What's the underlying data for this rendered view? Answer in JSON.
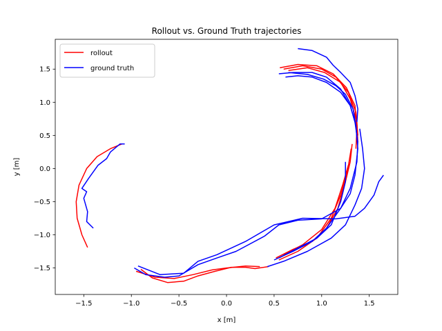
{
  "chart_data": {
    "type": "line",
    "title": "Rollout vs. Ground Truth trajectories",
    "xlabel": "x [m]",
    "ylabel": "y [m]",
    "xlim": [
      -1.8,
      1.8
    ],
    "ylim": [
      -1.9,
      1.95
    ],
    "xticks": [
      -1.5,
      -1.0,
      -0.5,
      0.0,
      0.5,
      1.0,
      1.5
    ],
    "xtick_labels": [
      "−1.5",
      "−1.0",
      "−0.5",
      "0.0",
      "0.5",
      "1.0",
      "1.5"
    ],
    "yticks": [
      -1.5,
      -1.0,
      -0.5,
      0.0,
      0.5,
      1.0,
      1.5
    ],
    "ytick_labels": [
      "−1.5",
      "−1.0",
      "−0.5",
      "0.0",
      "0.5",
      "1.0",
      "1.5"
    ],
    "grid": false,
    "legend": {
      "placement": "top-left",
      "entries": [
        {
          "label": "rollout",
          "color": "#ff0000"
        },
        {
          "label": "ground truth",
          "color": "#0000ff"
        }
      ]
    },
    "series": [
      {
        "role": "rollout",
        "color": "#ff0000",
        "points": [
          [
            -1.46,
            -1.19
          ],
          [
            -1.52,
            -1.0
          ],
          [
            -1.57,
            -0.75
          ],
          [
            -1.58,
            -0.5
          ],
          [
            -1.55,
            -0.25
          ],
          [
            -1.47,
            0.0
          ],
          [
            -1.36,
            0.18
          ],
          [
            -1.22,
            0.3
          ],
          [
            -1.1,
            0.37
          ]
        ]
      },
      {
        "role": "rollout",
        "color": "#ff0000",
        "points": [
          [
            -0.9,
            -1.52
          ],
          [
            -0.78,
            -1.65
          ],
          [
            -0.62,
            -1.72
          ],
          [
            -0.45,
            -1.7
          ],
          [
            -0.3,
            -1.62
          ],
          [
            -0.12,
            -1.55
          ],
          [
            0.05,
            -1.49
          ],
          [
            0.2,
            -1.49
          ],
          [
            0.3,
            -1.51
          ],
          [
            0.44,
            -1.48
          ]
        ]
      },
      {
        "role": "rollout",
        "color": "#ff0000",
        "points": [
          [
            -0.95,
            -1.55
          ],
          [
            -0.75,
            -1.64
          ],
          [
            -0.55,
            -1.66
          ],
          [
            -0.35,
            -1.6
          ],
          [
            -0.15,
            -1.53
          ],
          [
            0.0,
            -1.5
          ],
          [
            0.2,
            -1.47
          ],
          [
            0.35,
            -1.48
          ]
        ]
      },
      {
        "role": "rollout",
        "color": "#ff0000",
        "points": [
          [
            0.52,
            -1.35
          ],
          [
            0.7,
            -1.22
          ],
          [
            0.9,
            -1.1
          ],
          [
            1.05,
            -0.9
          ],
          [
            1.17,
            -0.6
          ],
          [
            1.25,
            -0.2
          ],
          [
            1.3,
            0.1
          ],
          [
            1.32,
            0.37
          ]
        ]
      },
      {
        "role": "rollout",
        "color": "#ff0000",
        "points": [
          [
            0.55,
            -1.38
          ],
          [
            0.75,
            -1.25
          ],
          [
            0.95,
            -1.05
          ],
          [
            1.1,
            -0.75
          ],
          [
            1.2,
            -0.4
          ],
          [
            1.27,
            -0.05
          ],
          [
            1.31,
            0.3
          ]
        ]
      },
      {
        "role": "rollout",
        "color": "#ff0000",
        "points": [
          [
            0.6,
            -1.3
          ],
          [
            0.8,
            -1.15
          ],
          [
            1.0,
            -0.92
          ],
          [
            1.14,
            -0.6
          ],
          [
            1.22,
            -0.25
          ],
          [
            1.28,
            0.05
          ]
        ]
      },
      {
        "role": "rollout",
        "color": "#ff0000",
        "points": [
          [
            0.56,
            1.52
          ],
          [
            0.75,
            1.57
          ],
          [
            0.95,
            1.55
          ],
          [
            1.12,
            1.43
          ],
          [
            1.26,
            1.22
          ],
          [
            1.35,
            0.95
          ],
          [
            1.37,
            0.6
          ],
          [
            1.36,
            0.3
          ]
        ]
      },
      {
        "role": "rollout",
        "color": "#ff0000",
        "points": [
          [
            0.6,
            1.5
          ],
          [
            0.8,
            1.55
          ],
          [
            1.0,
            1.5
          ],
          [
            1.15,
            1.38
          ],
          [
            1.28,
            1.15
          ],
          [
            1.36,
            0.85
          ],
          [
            1.38,
            0.5
          ]
        ]
      },
      {
        "role": "rollout",
        "color": "#ff0000",
        "points": [
          [
            0.65,
            1.48
          ],
          [
            0.85,
            1.52
          ],
          [
            1.03,
            1.45
          ],
          [
            1.2,
            1.3
          ],
          [
            1.3,
            1.05
          ],
          [
            1.37,
            0.7
          ],
          [
            1.38,
            0.4
          ]
        ]
      },
      {
        "role": "ground truth",
        "color": "#0000ff",
        "points": [
          [
            -1.4,
            -0.9
          ],
          [
            -1.47,
            -0.8
          ],
          [
            -1.46,
            -0.65
          ],
          [
            -1.5,
            -0.45
          ],
          [
            -1.47,
            -0.35
          ],
          [
            -1.52,
            -0.3
          ],
          [
            -1.45,
            -0.15
          ],
          [
            -1.35,
            0.05
          ],
          [
            -1.26,
            0.15
          ],
          [
            -1.22,
            0.25
          ],
          [
            -1.12,
            0.37
          ],
          [
            -1.07,
            0.37
          ]
        ]
      },
      {
        "role": "ground truth",
        "color": "#0000ff",
        "points": [
          [
            -0.97,
            -1.5
          ],
          [
            -0.85,
            -1.6
          ],
          [
            -0.65,
            -1.64
          ],
          [
            -0.5,
            -1.62
          ],
          [
            -0.3,
            -1.45
          ],
          [
            -0.1,
            -1.35
          ],
          [
            0.1,
            -1.25
          ],
          [
            0.4,
            -1.02
          ],
          [
            0.55,
            -0.85
          ],
          [
            0.75,
            -0.78
          ],
          [
            1.0,
            -0.76
          ],
          [
            1.2,
            -0.6
          ],
          [
            1.3,
            -0.38
          ],
          [
            1.35,
            -0.1
          ],
          [
            1.38,
            0.3
          ],
          [
            1.36,
            0.65
          ],
          [
            1.3,
            0.95
          ],
          [
            1.2,
            1.2
          ],
          [
            1.05,
            1.38
          ],
          [
            0.9,
            1.45
          ],
          [
            0.7,
            1.45
          ],
          [
            0.55,
            1.43
          ]
        ]
      },
      {
        "role": "ground truth",
        "color": "#0000ff",
        "points": [
          [
            -0.93,
            -1.47
          ],
          [
            -0.7,
            -1.6
          ],
          [
            -0.45,
            -1.58
          ],
          [
            -0.3,
            -1.4
          ],
          [
            -0.1,
            -1.3
          ],
          [
            0.2,
            -1.1
          ],
          [
            0.5,
            -0.85
          ],
          [
            0.8,
            -0.75
          ],
          [
            1.15,
            -0.76
          ],
          [
            1.35,
            -0.72
          ],
          [
            1.45,
            -0.6
          ],
          [
            1.55,
            -0.4
          ],
          [
            1.6,
            -0.2
          ],
          [
            1.65,
            -0.1
          ]
        ]
      },
      {
        "role": "ground truth",
        "color": "#0000ff",
        "points": [
          [
            0.43,
            -1.48
          ],
          [
            0.6,
            -1.4
          ],
          [
            0.85,
            -1.25
          ],
          [
            1.1,
            -1.05
          ],
          [
            1.25,
            -0.85
          ],
          [
            1.35,
            -0.55
          ],
          [
            1.42,
            -0.3
          ],
          [
            1.45,
            0.0
          ],
          [
            1.43,
            0.3
          ],
          [
            1.4,
            0.6
          ]
        ]
      },
      {
        "role": "ground truth",
        "color": "#0000ff",
        "points": [
          [
            0.55,
            -1.35
          ],
          [
            0.75,
            -1.2
          ],
          [
            0.95,
            -1.05
          ],
          [
            1.1,
            -0.85
          ],
          [
            1.2,
            -0.5
          ],
          [
            1.25,
            -0.2
          ],
          [
            1.25,
            0.1
          ]
        ]
      },
      {
        "role": "ground truth",
        "color": "#0000ff",
        "points": [
          [
            0.5,
            -1.38
          ],
          [
            0.7,
            -1.25
          ],
          [
            0.9,
            -1.1
          ],
          [
            1.05,
            -0.9
          ],
          [
            1.2,
            -0.6
          ],
          [
            1.3,
            -0.3
          ],
          [
            1.37,
            0.1
          ],
          [
            1.38,
            0.4
          ],
          [
            1.35,
            0.7
          ],
          [
            1.3,
            0.95
          ],
          [
            1.2,
            1.15
          ],
          [
            1.05,
            1.3
          ],
          [
            0.9,
            1.38
          ],
          [
            0.75,
            1.4
          ],
          [
            0.62,
            1.38
          ]
        ]
      },
      {
        "role": "ground truth",
        "color": "#0000ff",
        "points": [
          [
            0.75,
            1.81
          ],
          [
            0.9,
            1.78
          ],
          [
            1.05,
            1.68
          ],
          [
            1.12,
            1.56
          ],
          [
            1.2,
            1.45
          ],
          [
            1.3,
            1.3
          ],
          [
            1.35,
            1.1
          ],
          [
            1.38,
            0.9
          ],
          [
            1.37,
            0.7
          ]
        ]
      },
      {
        "role": "ground truth",
        "color": "#0000ff",
        "points": [
          [
            0.65,
            1.45
          ],
          [
            0.85,
            1.42
          ],
          [
            1.02,
            1.35
          ],
          [
            1.15,
            1.25
          ],
          [
            1.25,
            1.12
          ],
          [
            1.33,
            0.9
          ],
          [
            1.36,
            0.65
          ],
          [
            1.37,
            0.45
          ]
        ]
      }
    ]
  }
}
